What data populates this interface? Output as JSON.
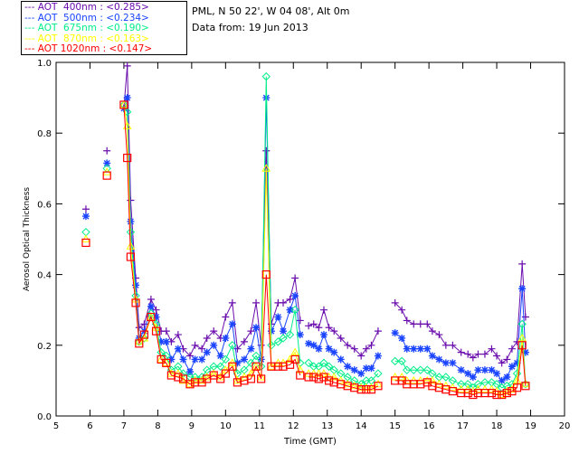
{
  "info": {
    "site": "PML, N 50 22', W 04 08', Alt 0m",
    "date": "Data from: 19 Jun 2013"
  },
  "chart_data": {
    "type": "line",
    "title": "",
    "xlabel": "Time (GMT)",
    "ylabel": "Aerosol Optical Thickness",
    "xlim": [
      5,
      20
    ],
    "ylim": [
      0,
      1.0
    ],
    "xticks": [
      "5",
      "6",
      "7",
      "8",
      "9",
      "10",
      "11",
      "12",
      "13",
      "14",
      "15",
      "16",
      "17",
      "18",
      "19",
      "20"
    ],
    "yticks": [
      "0.0",
      "0.2",
      "0.4",
      "0.6",
      "0.8",
      "1.0"
    ],
    "grid": false,
    "legend_position": "top-left outside",
    "legend": [
      {
        "label": "AOT  400nm : <0.285>",
        "color": "#6a0dad",
        "marker": "plus"
      },
      {
        "label": "AOT  500nm : <0.234>",
        "color": "#1a44ff",
        "marker": "asterisk"
      },
      {
        "label": "AOT  675nm : <0.190>",
        "color": "#00ee88",
        "marker": "diamond"
      },
      {
        "label": "AOT  870nm : <0.163>",
        "color": "#ffff00",
        "marker": "triangle"
      },
      {
        "label": "AOT 1020nm : <0.147>",
        "color": "#ff0000",
        "marker": "square"
      }
    ],
    "x": [
      5.88,
      6.5,
      7.0,
      7.1,
      7.2,
      7.35,
      7.45,
      7.6,
      7.8,
      7.95,
      8.1,
      8.25,
      8.4,
      8.6,
      8.75,
      8.95,
      9.1,
      9.3,
      9.45,
      9.65,
      9.85,
      10.0,
      10.2,
      10.35,
      10.55,
      10.75,
      10.9,
      11.05,
      11.2,
      11.35,
      11.55,
      11.7,
      11.9,
      12.05,
      12.2,
      12.45,
      12.6,
      12.75,
      12.9,
      13.05,
      13.2,
      13.4,
      13.6,
      13.8,
      14.0,
      14.15,
      14.3,
      14.5,
      15.0,
      15.2,
      15.35,
      15.55,
      15.75,
      15.95,
      16.1,
      16.3,
      16.5,
      16.7,
      16.95,
      17.15,
      17.3,
      17.45,
      17.65,
      17.85,
      18.0,
      18.15,
      18.3,
      18.45,
      18.6,
      18.75,
      18.85
    ],
    "connect_break_before": [
      6.5,
      7.0,
      12.45,
      15.0
    ],
    "series": [
      {
        "name": "AOT 400nm",
        "values": [
          0.585,
          0.75,
          0.87,
          0.99,
          0.61,
          0.39,
          0.25,
          0.26,
          0.33,
          0.3,
          0.24,
          0.24,
          0.21,
          0.23,
          0.19,
          0.17,
          0.2,
          0.19,
          0.22,
          0.24,
          0.22,
          0.28,
          0.32,
          0.19,
          0.21,
          0.24,
          0.32,
          0.2,
          0.75,
          0.26,
          0.32,
          0.32,
          0.33,
          0.39,
          0.27,
          0.255,
          0.26,
          0.25,
          0.3,
          0.25,
          0.24,
          0.22,
          0.2,
          0.19,
          0.17,
          0.19,
          0.2,
          0.24,
          0.32,
          0.3,
          0.27,
          0.26,
          0.26,
          0.26,
          0.24,
          0.23,
          0.2,
          0.2,
          0.18,
          0.175,
          0.165,
          0.175,
          0.175,
          0.19,
          0.17,
          0.15,
          0.16,
          0.19,
          0.21,
          0.43,
          0.28
        ]
      },
      {
        "name": "AOT 500nm",
        "values": [
          0.565,
          0.715,
          0.87,
          0.9,
          0.55,
          0.37,
          0.22,
          0.24,
          0.31,
          0.28,
          0.21,
          0.21,
          0.16,
          0.19,
          0.16,
          0.125,
          0.16,
          0.16,
          0.18,
          0.2,
          0.17,
          0.22,
          0.26,
          0.15,
          0.16,
          0.19,
          0.25,
          0.16,
          0.9,
          0.24,
          0.28,
          0.24,
          0.3,
          0.34,
          0.23,
          0.205,
          0.2,
          0.19,
          0.23,
          0.19,
          0.18,
          0.16,
          0.14,
          0.13,
          0.12,
          0.135,
          0.135,
          0.17,
          0.235,
          0.22,
          0.19,
          0.19,
          0.19,
          0.19,
          0.17,
          0.16,
          0.15,
          0.15,
          0.13,
          0.12,
          0.11,
          0.13,
          0.13,
          0.13,
          0.12,
          0.1,
          0.11,
          0.14,
          0.15,
          0.36,
          0.18
        ]
      },
      {
        "name": "AOT 675nm",
        "values": [
          0.52,
          0.7,
          0.88,
          0.86,
          0.52,
          0.34,
          0.21,
          0.22,
          0.29,
          0.26,
          0.18,
          0.17,
          0.13,
          0.14,
          0.12,
          0.11,
          0.11,
          0.11,
          0.13,
          0.14,
          0.14,
          0.16,
          0.2,
          0.12,
          0.13,
          0.15,
          0.17,
          0.14,
          0.96,
          0.2,
          0.21,
          0.22,
          0.23,
          0.3,
          0.15,
          0.15,
          0.14,
          0.14,
          0.15,
          0.14,
          0.13,
          0.12,
          0.11,
          0.1,
          0.09,
          0.1,
          0.1,
          0.12,
          0.155,
          0.155,
          0.13,
          0.13,
          0.13,
          0.13,
          0.12,
          0.11,
          0.11,
          0.1,
          0.09,
          0.09,
          0.08,
          0.09,
          0.095,
          0.095,
          0.09,
          0.08,
          0.085,
          0.09,
          0.12,
          0.26,
          0.09
        ]
      },
      {
        "name": "AOT 870nm",
        "values": [
          0.5,
          0.69,
          0.88,
          0.82,
          0.48,
          0.33,
          0.21,
          0.22,
          0.28,
          0.25,
          0.16,
          0.15,
          0.12,
          0.12,
          0.1,
          0.09,
          0.1,
          0.1,
          0.11,
          0.12,
          0.11,
          0.13,
          0.15,
          0.1,
          0.11,
          0.12,
          0.14,
          0.11,
          0.7,
          0.14,
          0.15,
          0.15,
          0.16,
          0.18,
          0.13,
          0.12,
          0.12,
          0.12,
          0.12,
          0.11,
          0.11,
          0.1,
          0.09,
          0.085,
          0.08,
          0.08,
          0.08,
          0.09,
          0.11,
          0.11,
          0.1,
          0.1,
          0.1,
          0.1,
          0.1,
          0.09,
          0.085,
          0.08,
          0.075,
          0.075,
          0.07,
          0.075,
          0.075,
          0.075,
          0.07,
          0.06,
          0.07,
          0.075,
          0.1,
          0.22,
          0.09
        ]
      },
      {
        "name": "AOT 1020nm",
        "values": [
          0.49,
          0.68,
          0.88,
          0.73,
          0.45,
          0.32,
          0.205,
          0.23,
          0.28,
          0.24,
          0.16,
          0.15,
          0.115,
          0.11,
          0.105,
          0.09,
          0.095,
          0.095,
          0.105,
          0.115,
          0.105,
          0.12,
          0.14,
          0.095,
          0.1,
          0.105,
          0.14,
          0.105,
          0.4,
          0.14,
          0.14,
          0.14,
          0.145,
          0.16,
          0.115,
          0.11,
          0.11,
          0.105,
          0.11,
          0.1,
          0.095,
          0.09,
          0.085,
          0.08,
          0.075,
          0.075,
          0.075,
          0.085,
          0.1,
          0.1,
          0.09,
          0.09,
          0.09,
          0.095,
          0.085,
          0.08,
          0.075,
          0.07,
          0.065,
          0.065,
          0.06,
          0.065,
          0.065,
          0.065,
          0.06,
          0.06,
          0.065,
          0.07,
          0.08,
          0.2,
          0.085
        ]
      }
    ]
  }
}
